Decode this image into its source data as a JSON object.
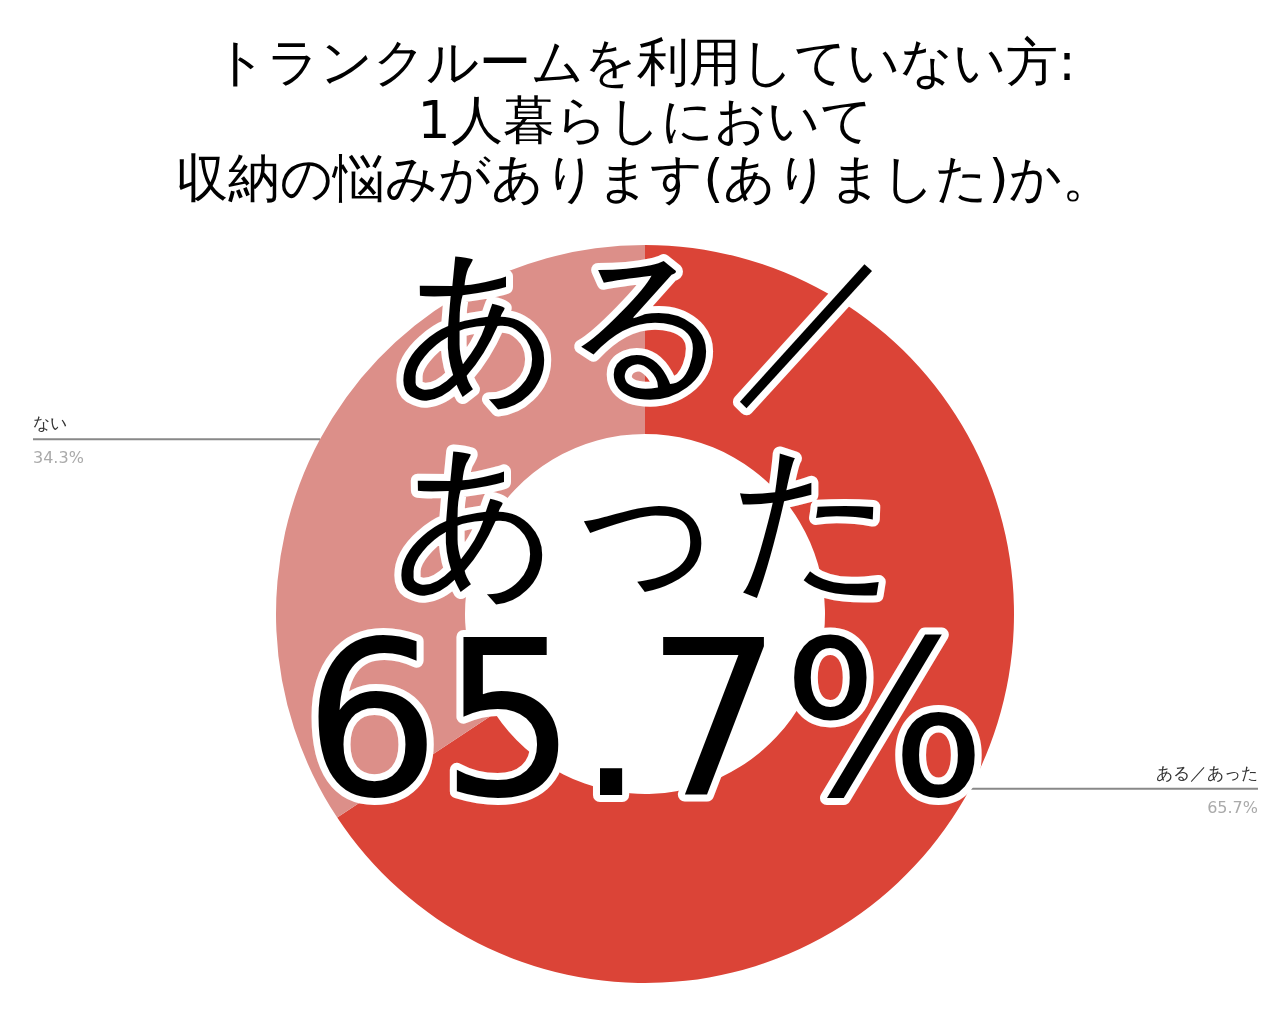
{
  "chart_data": {
    "type": "donut",
    "title": "トランクルームを利用していない方:",
    "subtitle": "1人暮らしにおいて",
    "categories": [
      "ある／あった",
      "ない"
    ],
    "values": [
      65.7,
      34.3
    ],
    "colors": [
      "#db4437",
      "#dc8f89"
    ],
    "value_labels": [
      "65.7%",
      "34.3%"
    ],
    "annotations": [
      "収納の悩みがあります(ありました)か。",
      "ある／",
      "あった",
      "65.7%"
    ]
  }
}
